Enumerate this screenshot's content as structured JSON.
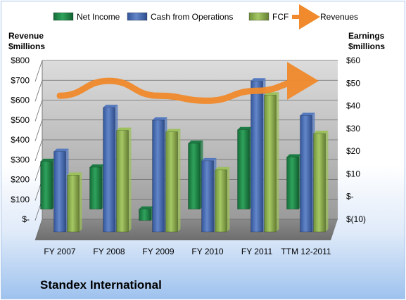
{
  "company": "Standex International",
  "chart_data": {
    "type": "bar",
    "categories": [
      "FY 2007",
      "FY 2008",
      "FY 2009",
      "FY 2010",
      "FY 2011",
      "TTM 12-2011"
    ],
    "series": [
      {
        "name": "Net Income",
        "axis": "right",
        "color": "#1f8a4c",
        "values": [
          21,
          18.5,
          -5,
          29,
          35,
          23
        ]
      },
      {
        "name": "Cash from Operations",
        "axis": "left",
        "color": "#4a6fb5",
        "values": [
          405,
          626,
          563,
          358,
          760,
          586
        ]
      },
      {
        "name": "FCF",
        "axis": "left",
        "color": "#8fb44a",
        "values": [
          285,
          511,
          504,
          312,
          689,
          495
        ]
      },
      {
        "name": "Revenues",
        "type": "line",
        "axis": "left",
        "color": "#f08a2c",
        "values": [
          615,
          690,
          615,
          590,
          640,
          690
        ]
      }
    ],
    "left_axis": {
      "label_lines": [
        "Revenue",
        "$millions"
      ],
      "min": 0,
      "max": 800,
      "step": 100,
      "tick_labels": [
        "$-",
        "$100",
        "$200",
        "$300",
        "$400",
        "$500",
        "$600",
        "$700",
        "$800"
      ]
    },
    "right_axis": {
      "label_lines": [
        "Earnings",
        "$millions"
      ],
      "min": -10,
      "max": 60,
      "step": 10,
      "tick_labels": [
        "$(10)",
        "$-",
        "$10",
        "$20",
        "$30",
        "$40",
        "$50",
        "$60"
      ]
    },
    "legend_position": "top",
    "grid": true
  }
}
